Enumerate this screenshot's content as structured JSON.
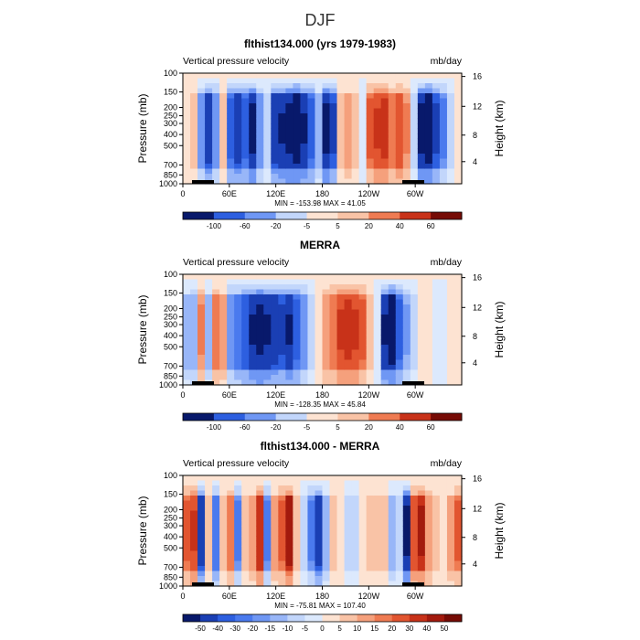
{
  "figure": {
    "title": "DJF"
  },
  "colors": {
    "neg": [
      "#08196b",
      "#1a3fb4",
      "#2d5fe0",
      "#4a7aee",
      "#6f97f4",
      "#98b6f8",
      "#c2d6fb",
      "#dce9fd"
    ],
    "pos": [
      "#fde3d2",
      "#f9c3a6",
      "#f5a07c",
      "#ef7b52",
      "#e25530",
      "#c83219",
      "#a31a0d",
      "#760b05"
    ]
  },
  "chart_data": [
    {
      "type": "heatmap",
      "title": "flthist134.000 (yrs 1979-1983)",
      "subtitle_left": "Vertical pressure velocity",
      "subtitle_right": "mb/day",
      "ylabel": "Pressure (mb)",
      "ylabel_right": "Height (km)",
      "y_ticks": [
        "100",
        "150",
        "200",
        "250",
        "300",
        "400",
        "500",
        "700",
        "850",
        "1000"
      ],
      "y_ticks_right": [
        "16",
        "12",
        "8",
        "4"
      ],
      "x_ticks": [
        "0",
        "60E",
        "120E",
        "180",
        "120W",
        "60W"
      ],
      "stats": "MIN = -153.98   MAX =  41.05",
      "colorbar_labels": [
        "-100",
        "-60",
        "-20",
        "-5",
        "5",
        "20",
        "40",
        "60"
      ],
      "profile": [
        0.1,
        0.15,
        -0.45,
        -0.85,
        -0.5,
        0.2,
        -0.7,
        -0.85,
        -0.7,
        -0.95,
        -0.45,
        -0.15,
        -0.85,
        -0.9,
        -0.95,
        -1.0,
        -0.9,
        -0.7,
        -0.3,
        -0.95,
        -0.8,
        0.15,
        0.3,
        0.25,
        -0.1,
        0.55,
        0.65,
        0.7,
        0.45,
        0.6,
        0.4,
        -0.15,
        -0.95,
        -1.0,
        -0.8,
        -0.55,
        -0.2,
        0.05
      ]
    },
    {
      "type": "heatmap",
      "title": "MERRA",
      "subtitle_left": "Vertical pressure velocity",
      "subtitle_right": "mb/day",
      "ylabel": "Pressure (mb)",
      "ylabel_right": "Height (km)",
      "y_ticks": [
        "100",
        "150",
        "200",
        "250",
        "300",
        "400",
        "500",
        "700",
        "850",
        "1000"
      ],
      "y_ticks_right": [
        "16",
        "12",
        "8",
        "4"
      ],
      "x_ticks": [
        "0",
        "60E",
        "120E",
        "180",
        "120W",
        "60W"
      ],
      "stats": "MIN = -128.35   MAX =  45.84",
      "colorbar_labels": [
        "-100",
        "-60",
        "-20",
        "-5",
        "5",
        "20",
        "40",
        "60"
      ],
      "profile": [
        -0.3,
        -0.35,
        0.4,
        -0.3,
        0.45,
        0.3,
        -0.5,
        -0.6,
        -0.75,
        -0.9,
        -0.95,
        -0.9,
        -0.85,
        -0.8,
        -0.9,
        -0.7,
        -0.5,
        -0.2,
        0.05,
        0.35,
        0.5,
        0.65,
        0.7,
        0.65,
        0.55,
        0.25,
        -0.1,
        -0.9,
        -1.0,
        -0.7,
        -0.4,
        -0.2,
        0.1,
        0.05,
        -0.1,
        -0.05,
        0.0,
        0.05
      ]
    },
    {
      "type": "heatmap",
      "title": "flthist134.000 - MERRA",
      "subtitle_left": "Vertical pressure velocity",
      "subtitle_right": "mb/day",
      "ylabel": "Pressure (mb)",
      "ylabel_right": "Height (km)",
      "y_ticks": [
        "100",
        "150",
        "200",
        "250",
        "300",
        "400",
        "500",
        "700",
        "850",
        "1000"
      ],
      "y_ticks_right": [
        "16",
        "12",
        "8",
        "4"
      ],
      "x_ticks": [
        "0",
        "60E",
        "120E",
        "180",
        "120W",
        "60W"
      ],
      "stats": "MIN = -75.81   MAX = 107.40",
      "colorbar_labels": [
        "-50",
        "-40",
        "-30",
        "-20",
        "-15",
        "-10",
        "-5",
        "0",
        "5",
        "10",
        "15",
        "20",
        "30",
        "40",
        "50"
      ],
      "profile": [
        0.55,
        0.65,
        -0.85,
        0.2,
        -0.6,
        0.15,
        0.45,
        -0.55,
        0.15,
        0.3,
        0.75,
        -0.55,
        0.3,
        0.55,
        0.85,
        0.25,
        -0.2,
        -0.55,
        -0.85,
        -0.3,
        0.2,
        0.05,
        -0.15,
        -0.2,
        0.1,
        0.25,
        0.2,
        0.25,
        -0.3,
        -0.2,
        -0.95,
        0.6,
        0.8,
        0.35,
        0.2,
        0.1,
        0.3,
        0.55
      ]
    }
  ]
}
